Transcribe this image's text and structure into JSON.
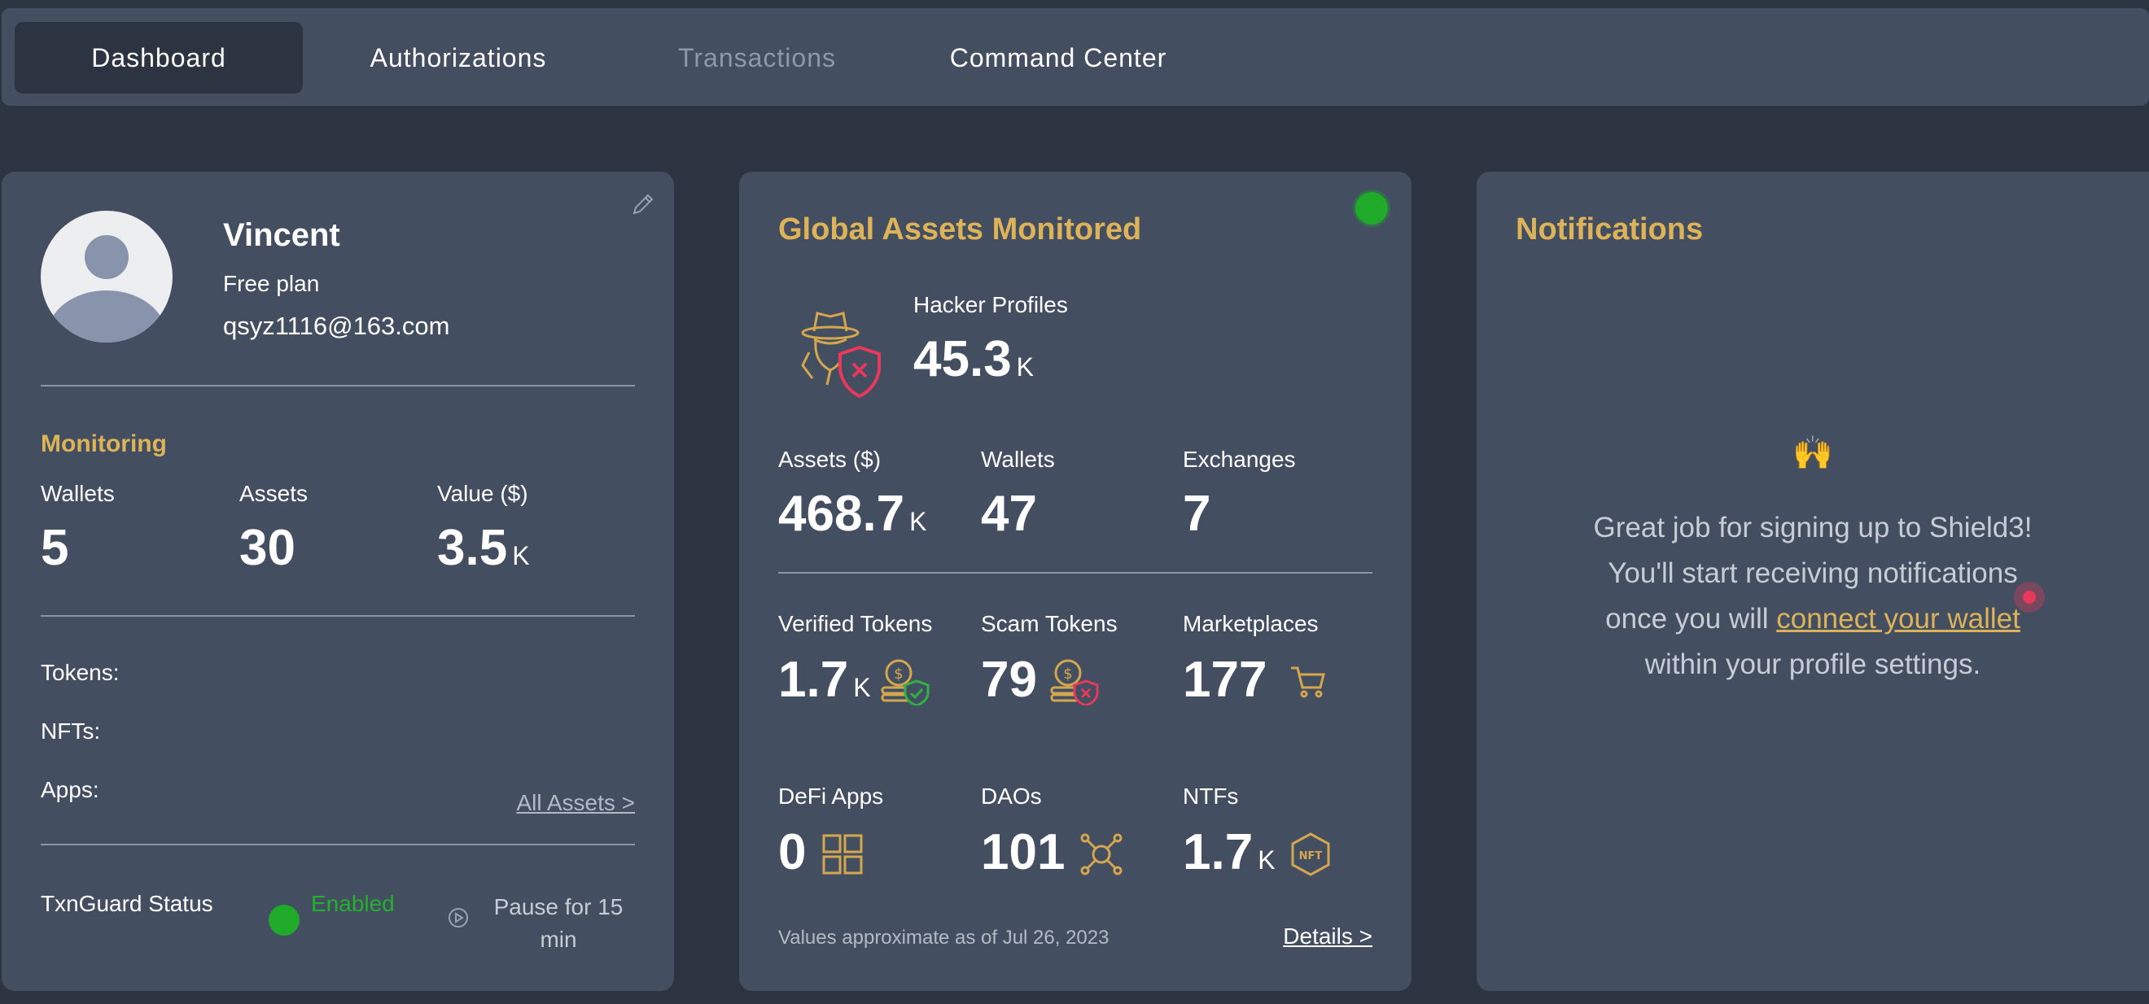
{
  "nav": {
    "tabs": [
      {
        "label": "Dashboard",
        "state": "active"
      },
      {
        "label": "Authorizations",
        "state": "normal"
      },
      {
        "label": "Transactions",
        "state": "disabled"
      },
      {
        "label": "Command Center",
        "state": "normal"
      }
    ]
  },
  "profile": {
    "name": "Vincent",
    "plan": "Free plan",
    "email": "qsyz1116@163.com",
    "monitoring": {
      "title": "Monitoring",
      "stats": [
        {
          "label": "Wallets",
          "value": "5",
          "unit": ""
        },
        {
          "label": "Assets",
          "value": "30",
          "unit": ""
        },
        {
          "label": "Value ($)",
          "value": "3.5",
          "unit": "K"
        }
      ]
    },
    "tokens_label": "Tokens:",
    "nfts_label": "NFTs:",
    "apps_label": "Apps:",
    "all_assets_link": "All Assets >",
    "txnguard": {
      "label": "TxnGuard Status",
      "status": "Enabled",
      "pause_label": "Pause for 15 min"
    }
  },
  "global": {
    "title": "Global Assets Monitored",
    "hacker": {
      "label": "Hacker Profiles",
      "value": "45.3",
      "unit": "K"
    },
    "row1": [
      {
        "label": "Assets ($)",
        "value": "468.7",
        "unit": "K"
      },
      {
        "label": "Wallets",
        "value": "47",
        "unit": ""
      },
      {
        "label": "Exchanges",
        "value": "7",
        "unit": ""
      }
    ],
    "row2": [
      {
        "label": "Verified Tokens",
        "value": "1.7",
        "unit": "K",
        "icon": "verified-coins-icon"
      },
      {
        "label": "Scam Tokens",
        "value": "79",
        "unit": "",
        "icon": "scam-coins-icon"
      },
      {
        "label": "Marketplaces",
        "value": "177",
        "unit": "",
        "icon": "cart-icon"
      }
    ],
    "row3": [
      {
        "label": "DeFi Apps",
        "value": "0",
        "unit": "",
        "icon": "grid-apps-icon"
      },
      {
        "label": "DAOs",
        "value": "101",
        "unit": "",
        "icon": "network-nodes-icon"
      },
      {
        "label": "NTFs",
        "value": "1.7",
        "unit": "K",
        "icon": "nft-hexagon-icon"
      }
    ],
    "footnote": "Values approximate as of Jul 26, 2023",
    "details_link": "Details >"
  },
  "notifications": {
    "title": "Notifications",
    "emoji": "🙌",
    "line1": "Great job for signing up to Shield3!",
    "line2": "You'll start receiving notifications",
    "line3_prefix": "once you will ",
    "line3_link": "connect your wallet",
    "line4": "within your profile settings."
  },
  "colors": {
    "accent_gold": "#ddb35a",
    "status_green": "#1faa2a",
    "alert_red": "#e6395c",
    "card_bg": "#434e61",
    "page_bg": "#2c3341"
  }
}
